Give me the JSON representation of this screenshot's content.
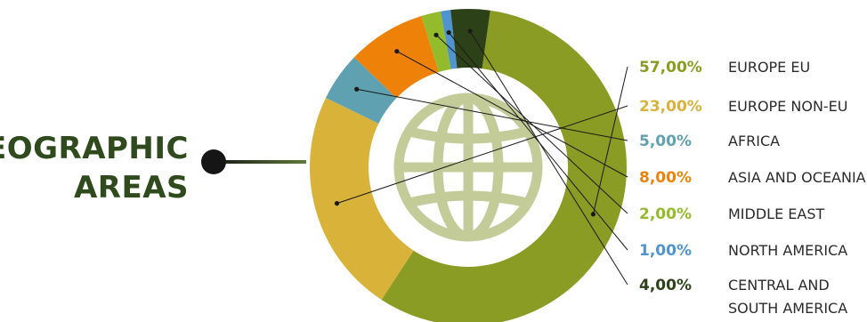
{
  "colors": {
    "title": "#2f4a1c",
    "globe": "#c3cc98",
    "leader": "#1a1a1a",
    "connector_start": "#151515",
    "connector_end": "#5f7b3a"
  },
  "chart_data": {
    "type": "pie",
    "variant": "donut",
    "title_lines": [
      "GEOGRAPHIC",
      "AREAS"
    ],
    "center_icon": "globe-icon",
    "series": [
      {
        "name": "EUROPE EU",
        "value_label": "57,00%",
        "value": 57,
        "color": "#8a9c24",
        "label_color": "#8a9c24"
      },
      {
        "name": "EUROPE NON-EU",
        "value_label": "23,00%",
        "value": 23,
        "color": "#d9b23a",
        "label_color": "#d9b23a"
      },
      {
        "name": "AFRICA",
        "value_label": "5,00%",
        "value": 5,
        "color": "#5fa1b0",
        "label_color": "#5fa1b0"
      },
      {
        "name": "ASIA AND OCEANIA",
        "value_label": "8,00%",
        "value": 8,
        "color": "#ee8208",
        "label_color": "#ee8208"
      },
      {
        "name": "MIDDLE EAST",
        "value_label": "2,00%",
        "value": 2,
        "color": "#93bb2c",
        "label_color": "#93bb2c"
      },
      {
        "name": "NORTH AMERICA",
        "value_label": "1,00%",
        "value": 1,
        "color": "#4f93cf",
        "label_color": "#4f93cf"
      },
      {
        "name": "CENTRAL AND SOUTH AMERICA",
        "name_lines": [
          "CENTRAL AND",
          "SOUTH AMERICA"
        ],
        "value_label": "4,00%",
        "value": 4,
        "color": "#2d4119",
        "label_color": "#2d4119"
      }
    ]
  }
}
